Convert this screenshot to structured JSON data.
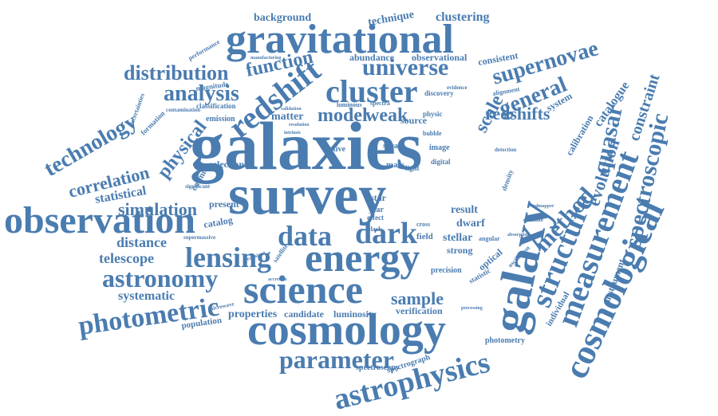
{
  "color": "#4a7cb0",
  "words": [
    "galaxies",
    "survey",
    "galaxy",
    "cosmology",
    "gravitational",
    "observation",
    "energy",
    "science",
    "cosmological",
    "measurement",
    "redshift",
    "cluster",
    "dark",
    "astrophysics",
    "data",
    "lensing",
    "structure",
    "spectroscopic",
    "photometric",
    "astronomy",
    "parameter",
    "method",
    "quasar",
    "universe",
    "supernovae",
    "general",
    "distribution",
    "technology",
    "analysis",
    "function",
    "weak",
    "model",
    "redshifts",
    "scale",
    "correlation",
    "physical",
    "evolution",
    "constraint",
    "simulation",
    "sample",
    "catalogue",
    "telescope",
    "distance",
    "systematic",
    "statistical",
    "properties",
    "background",
    "technique",
    "clustering",
    "stellar",
    "result",
    "dwarf",
    "matter",
    "source",
    "abundance",
    "observational",
    "consistent",
    "calibration",
    "system",
    "instrument",
    "individual",
    "precision",
    "verification",
    "luminosity",
    "candidate",
    "population",
    "spectrograph",
    "spectroscopy",
    "photometry",
    "cosmic",
    "selection",
    "present",
    "catalog",
    "supermassive",
    "microwave",
    "optical",
    "strong",
    "image",
    "digital",
    "emission",
    "classification",
    "contamination",
    "magnitude",
    "formation",
    "uncertainties",
    "performance",
    "manufacturing",
    "luminous",
    "spectra",
    "physic",
    "shear",
    "bubble",
    "active",
    "star",
    "year",
    "field",
    "cross",
    "effect",
    "black",
    "light",
    "significant",
    "statistic",
    "oscillation",
    "angular",
    "density",
    "detection",
    "absorption",
    "estimate",
    "satellite",
    "accretion",
    "transient",
    "processing",
    "alignment",
    "evidence",
    "discovery",
    "validation",
    "resolution",
    "intrinsic",
    "mass",
    "redmapper"
  ]
}
